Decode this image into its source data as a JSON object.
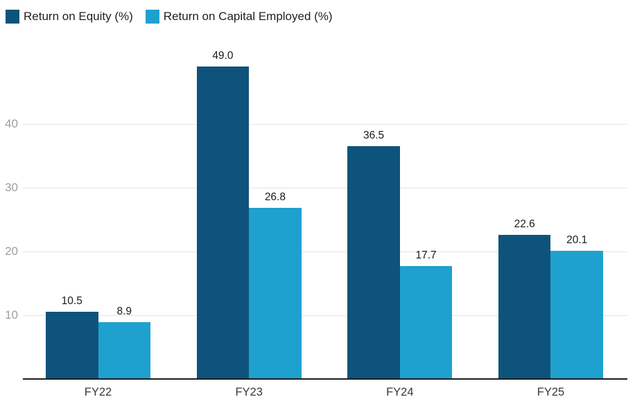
{
  "legend": {
    "items": [
      {
        "label": "Return on Equity (%)",
        "color": "#0e537b"
      },
      {
        "label": "Return on Capital Employed (%)",
        "color": "#1ea1ce"
      }
    ]
  },
  "chart_data": {
    "type": "bar",
    "title": "",
    "xlabel": "",
    "ylabel": "",
    "categories": [
      "FY22",
      "FY23",
      "FY24",
      "FY25"
    ],
    "series": [
      {
        "name": "Return on Equity (%)",
        "color": "#0e537b",
        "values": [
          10.5,
          49.0,
          36.5,
          22.6
        ],
        "labels": [
          "10.5",
          "49.0",
          "36.5",
          "22.6"
        ]
      },
      {
        "name": "Return on Capital Employed (%)",
        "color": "#1ea1ce",
        "values": [
          8.9,
          26.8,
          17.7,
          20.1
        ],
        "labels": [
          "8.9",
          "26.8",
          "17.7",
          "20.1"
        ]
      }
    ],
    "yticks": [
      10,
      20,
      30,
      40
    ],
    "ylim": [
      0,
      53
    ],
    "grid": true,
    "legend_position": "top-left"
  }
}
